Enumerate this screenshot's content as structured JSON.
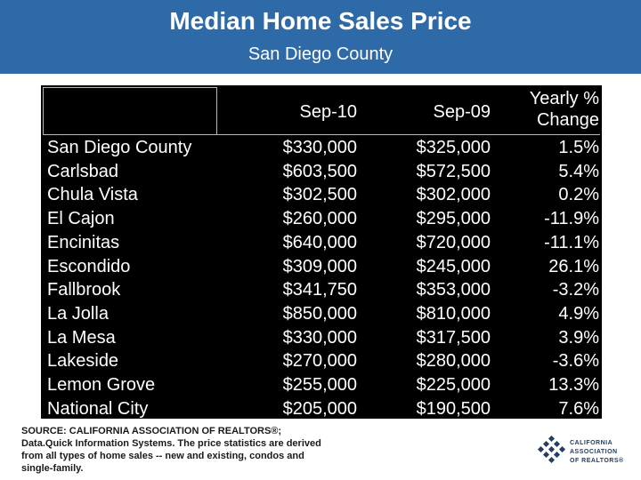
{
  "header": {
    "title": "Median Home Sales Price",
    "subtitle": "San Diego County"
  },
  "table": {
    "col1": "Sep-10",
    "col2": "Sep-09",
    "col3_line1": "Yearly %",
    "col3_line2": "Change",
    "rows": [
      {
        "name": "San Diego County",
        "a": "$330,000",
        "b": "$325,000",
        "c": "1.5%"
      },
      {
        "name": "Carlsbad",
        "a": "$603,500",
        "b": "$572,500",
        "c": "5.4%"
      },
      {
        "name": "Chula Vista",
        "a": "$302,500",
        "b": "$302,000",
        "c": "0.2%"
      },
      {
        "name": "El Cajon",
        "a": "$260,000",
        "b": "$295,000",
        "c": "-11.9%"
      },
      {
        "name": "Encinitas",
        "a": "$640,000",
        "b": "$720,000",
        "c": "-11.1%"
      },
      {
        "name": "Escondido",
        "a": "$309,000",
        "b": "$245,000",
        "c": "26.1%"
      },
      {
        "name": "Fallbrook",
        "a": "$341,750",
        "b": "$353,000",
        "c": "-3.2%"
      },
      {
        "name": "La Jolla",
        "a": "$850,000",
        "b": "$810,000",
        "c": "4.9%"
      },
      {
        "name": "La Mesa",
        "a": "$330,000",
        "b": "$317,500",
        "c": "3.9%"
      },
      {
        "name": "Lakeside",
        "a": "$270,000",
        "b": "$280,000",
        "c": "-3.6%"
      },
      {
        "name": "Lemon Grove",
        "a": "$255,000",
        "b": "$225,000",
        "c": "13.3%"
      },
      {
        "name": "National City",
        "a": "$205,000",
        "b": "$190,500",
        "c": "7.6%"
      }
    ]
  },
  "source": "SOURCE: CALIFORNIA ASSOCIATION OF REALTORS®; Data.Quick Information Systems. The price statistics are derived from all types of home sales -- new and existing, condos and single-family.",
  "logo": {
    "line1": "CALIFORNIA",
    "line2": "ASSOCIATION",
    "line3": "OF REALTORS®",
    "color": "#1f3f66"
  }
}
